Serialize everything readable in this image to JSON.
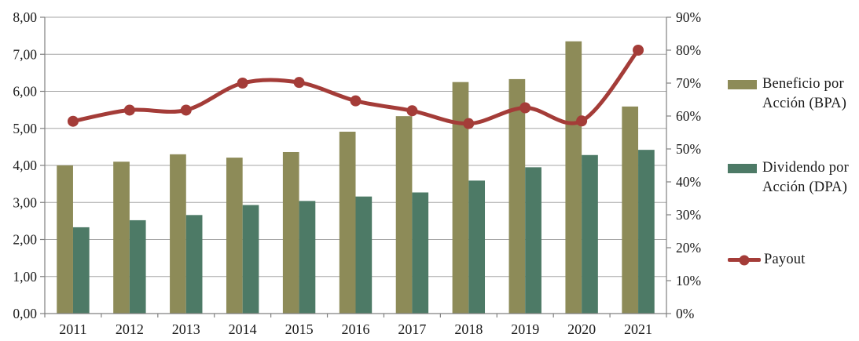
{
  "colors": {
    "bpa": "#8D8B58",
    "dpa": "#4D7A66",
    "payout": "#A43C38",
    "grid": "#A6A6A6",
    "axis": "#808080",
    "text": "#1A1A1A"
  },
  "chart_data": {
    "type": "combo-bar-line",
    "title": "",
    "categories": [
      "2011",
      "2012",
      "2013",
      "2014",
      "2015",
      "2016",
      "2017",
      "2018",
      "2019",
      "2020",
      "2021"
    ],
    "series": [
      {
        "name": "Beneficio por Acción (BPA)",
        "type": "bar",
        "axis": "left",
        "color_key": "bpa",
        "values": [
          4.0,
          4.1,
          4.3,
          4.21,
          4.36,
          4.91,
          5.33,
          6.25,
          6.33,
          7.35,
          5.59
        ]
      },
      {
        "name": "Dividendo por Acción (DPA)",
        "type": "bar",
        "axis": "left",
        "color_key": "dpa",
        "values": [
          2.33,
          2.52,
          2.66,
          2.93,
          3.04,
          3.16,
          3.27,
          3.59,
          3.95,
          4.28,
          4.42
        ]
      },
      {
        "name": "Payout",
        "type": "line",
        "axis": "right",
        "color_key": "payout",
        "values": [
          58.4,
          61.8,
          61.8,
          70.0,
          70.2,
          64.6,
          61.6,
          57.7,
          62.5,
          58.5,
          80.0
        ]
      }
    ],
    "axes": {
      "left": {
        "min": 0,
        "max": 8,
        "ticks": [
          "0,00",
          "1,00",
          "2,00",
          "3,00",
          "4,00",
          "5,00",
          "6,00",
          "7,00",
          "8,00"
        ]
      },
      "right": {
        "min": 0,
        "max": 90,
        "ticks": [
          "0%",
          "10%",
          "20%",
          "30%",
          "40%",
          "50%",
          "60%",
          "70%",
          "80%",
          "90%"
        ]
      }
    },
    "grid": true,
    "legend_position": "right"
  }
}
